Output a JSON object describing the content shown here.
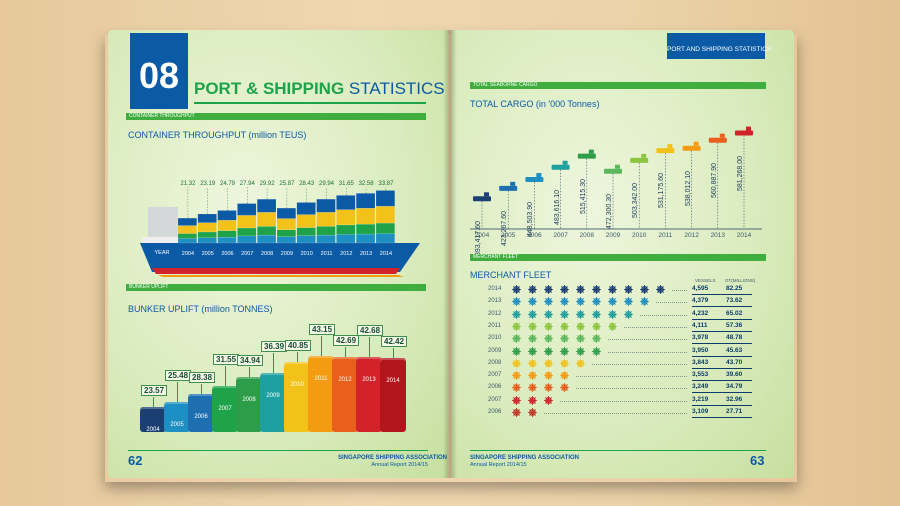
{
  "left_page": {
    "chapter_number": "08",
    "chapter_title_bold": "PORT & SHIPPING",
    "chapter_title_light": "STATISTICS",
    "container_band": "CONTAINER THROUGHPUT",
    "container_title": "CONTAINER THROUGHPUT (million TEUS)",
    "year_label": "YEAR",
    "bunker_band": "BUNKER UPLIFT",
    "bunker_title": "BUNKER UPLIFT (million TONNES)",
    "page_number": "62",
    "footer_org": "SINGAPORE SHIPPING ASSOCIATION",
    "footer_report": "Annual Report 2014/15"
  },
  "right_page": {
    "header_tag": "PORT AND SHIPPING STATISTICS",
    "cargo_band": "TOTAL SEABORNE CARGO",
    "cargo_title": "TOTAL CARGO (in '000 Tonnes)",
    "fleet_band": "MERCHANT FLEET",
    "fleet_title": "MERCHANT FLEET",
    "fleet_col_vessels": "VESSELS",
    "fleet_col_gt": "GT(MILLIONS)",
    "page_number": "63",
    "footer_org": "SINGAPORE SHIPPING ASSOCIATION",
    "footer_report": "Annual Report 2014/15"
  },
  "colors": {
    "blue": "#0b5aa5",
    "green": "#1ea34a",
    "yellow": "#f2c21b",
    "red": "#d2232a"
  },
  "chart_data": [
    {
      "type": "bar",
      "title": "CONTAINER THROUGHPUT (million TEUS)",
      "categories": [
        "2004",
        "2005",
        "2006",
        "2007",
        "2008",
        "2009",
        "2010",
        "2011",
        "2012",
        "2013",
        "2014"
      ],
      "values": [
        21.32,
        23.19,
        24.79,
        27.94,
        29.92,
        25.87,
        28.43,
        29.94,
        31.65,
        32.58,
        33.87
      ],
      "labels": [
        "21.32",
        "23.19",
        "24.79",
        "27.94",
        "29.92",
        "25.87",
        "28.43",
        "29.94",
        "31.65",
        "32.58",
        "33.87"
      ]
    },
    {
      "type": "bar",
      "title": "BUNKER UPLIFT (million TONNES)",
      "categories": [
        "2004",
        "2005",
        "2006",
        "2007",
        "2008",
        "2009",
        "2010",
        "2011",
        "2012",
        "2013",
        "2014"
      ],
      "values": [
        23.57,
        25.48,
        28.38,
        31.55,
        34.94,
        36.39,
        40.85,
        43.15,
        42.69,
        42.68,
        42.42
      ],
      "labels": [
        "23.57",
        "25.48",
        "28.38",
        "31.55",
        "34.94",
        "36.39",
        "40.85",
        "43.15",
        "42.69",
        "42.68",
        "42.42"
      ]
    },
    {
      "type": "line",
      "title": "TOTAL CARGO (in '000 Tonnes)",
      "categories": [
        "2004",
        "2005",
        "2006",
        "2007",
        "2008",
        "2009",
        "2010",
        "2011",
        "2012",
        "2013",
        "2014"
      ],
      "values": [
        393417.6,
        423267.6,
        448503.9,
        483616.1,
        515415.3,
        472300.3,
        503342.0,
        531175.6,
        538012.1,
        560887.9,
        581268.0
      ],
      "labels": [
        "393,417.60",
        "423,267.60",
        "448,503.90",
        "483,616.10",
        "515,415.30",
        "472,300.30",
        "503,342.00",
        "531,175.60",
        "538,012.10",
        "560,887.90",
        "581,268.00"
      ]
    },
    {
      "type": "table",
      "title": "MERCHANT FLEET",
      "rows": [
        {
          "year": "2014",
          "vessels": "4,595",
          "gt": "82.25",
          "icons": 10,
          "color": "#1b3f73"
        },
        {
          "year": "2013",
          "vessels": "4,379",
          "gt": "73.62",
          "icons": 9,
          "color": "#1e8fc2"
        },
        {
          "year": "2012",
          "vessels": "4,232",
          "gt": "65.02",
          "icons": 8,
          "color": "#1e9fa0"
        },
        {
          "year": "2011",
          "vessels": "4,111",
          "gt": "57.36",
          "icons": 7,
          "color": "#8cc63f"
        },
        {
          "year": "2010",
          "vessels": "3,978",
          "gt": "48.78",
          "icons": 6,
          "color": "#5cb85c"
        },
        {
          "year": "2009",
          "vessels": "3,950",
          "gt": "45.63",
          "icons": 6,
          "color": "#2e9d4a"
        },
        {
          "year": "2008",
          "vessels": "3,843",
          "gt": "43.70",
          "icons": 5,
          "color": "#f2c21b"
        },
        {
          "year": "2007",
          "vessels": "3,553",
          "gt": "39.60",
          "icons": 4,
          "color": "#f39c12"
        },
        {
          "year": "2006",
          "vessels": "3,249",
          "gt": "34.79",
          "icons": 4,
          "color": "#e8601c"
        },
        {
          "year": "2007",
          "vessels": "3,219",
          "gt": "32.96",
          "icons": 3,
          "color": "#d2232a"
        },
        {
          "year": "2006",
          "vessels": "3,109",
          "gt": "27.71",
          "icons": 2,
          "color": "#c0392b"
        }
      ]
    }
  ]
}
